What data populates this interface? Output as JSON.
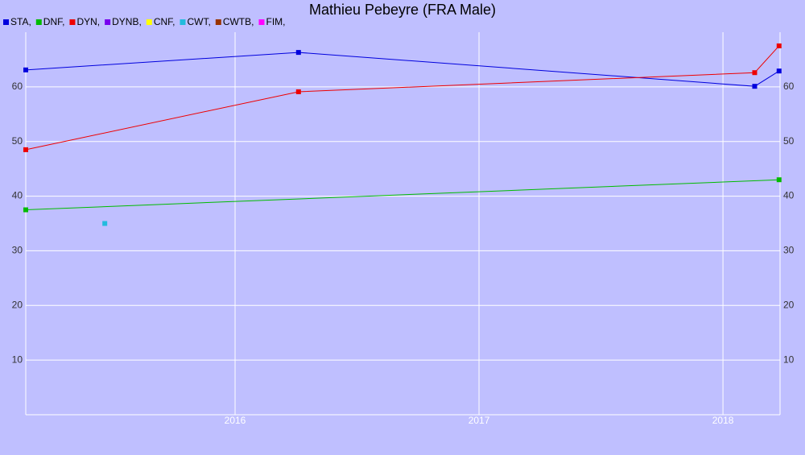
{
  "chart_data": {
    "type": "line",
    "title": "Mathieu Pebeyre (FRA Male)",
    "xlim": [
      2015.142,
      2018.234
    ],
    "xticks": [
      2016,
      2017,
      2018
    ],
    "ylim": [
      0,
      70
    ],
    "yticks": [
      10,
      20,
      30,
      40,
      50,
      60
    ],
    "grid": true,
    "legend": "top-left",
    "series": [
      {
        "name": "STA,",
        "color": "#0000dd",
        "x": [
          2015.142,
          2016.26,
          2018.13,
          2018.23
        ],
        "values": [
          63.1,
          66.3,
          60.1,
          62.9
        ]
      },
      {
        "name": "DNF,",
        "color": "#00bb00",
        "x": [
          2015.142,
          2018.23
        ],
        "values": [
          37.5,
          43.0
        ]
      },
      {
        "name": "DYN,",
        "color": "#ee0000",
        "x": [
          2015.142,
          2016.26,
          2018.13,
          2018.23
        ],
        "values": [
          48.5,
          59.1,
          62.6,
          67.5
        ]
      },
      {
        "name": "DYNB,",
        "color": "#7700ee",
        "x": [],
        "values": []
      },
      {
        "name": "CNF,",
        "color": "#ffff00",
        "x": [],
        "values": []
      },
      {
        "name": "CWT,",
        "color": "#22bbdd",
        "x": [
          2015.466
        ],
        "values": [
          35.0
        ]
      },
      {
        "name": "CWTB,",
        "color": "#993300",
        "x": [],
        "values": []
      },
      {
        "name": "FIM,",
        "color": "#ff00ff",
        "x": [],
        "values": []
      }
    ]
  }
}
